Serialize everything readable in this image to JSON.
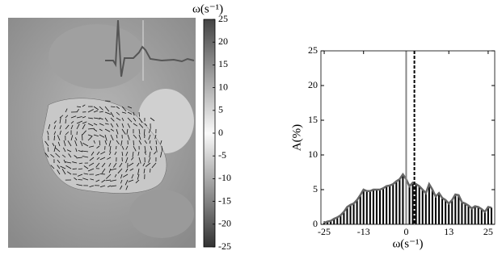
{
  "chart_data": [
    {
      "type": "colorbar",
      "title": "ω(s⁻¹)",
      "ylim": [
        -25,
        25
      ],
      "yticks": [
        25,
        20,
        15,
        10,
        5,
        0,
        -5,
        -10,
        -15,
        -20,
        -25
      ]
    },
    {
      "type": "bar",
      "xlabel": "ω(s⁻¹)",
      "ylabel": "A(%)",
      "x": [
        -25,
        -24,
        -23,
        -22,
        -21,
        -20,
        -19,
        -18,
        -17,
        -16,
        -15,
        -14,
        -13,
        -12,
        -11,
        -10,
        -9,
        -8,
        -7,
        -6,
        -5,
        -4,
        -3,
        -2,
        -1,
        0,
        1,
        2,
        3,
        4,
        5,
        6,
        7,
        8,
        9,
        10,
        11,
        12,
        13,
        14,
        15,
        16,
        17,
        18,
        19,
        20,
        21,
        22,
        23,
        24,
        25,
        26
      ],
      "series": [
        {
          "color": "#000000",
          "line_color": "#666666",
          "values": [
            0.2,
            0.4,
            0.5,
            0.8,
            1,
            1.3,
            1.8,
            2.5,
            2.8,
            3,
            3.5,
            4.2,
            5,
            4.8,
            4.8,
            5,
            5,
            5,
            5.2,
            5.5,
            5.6,
            5.8,
            6.2,
            6.5,
            7.2,
            6.5,
            5.5,
            6,
            5.8,
            5.5,
            5,
            4.5,
            5.8,
            5,
            4,
            4.5,
            3.8,
            3.5,
            3,
            3.5,
            4.3,
            4.2,
            3.2,
            3,
            2.7,
            2.3,
            2.6,
            2.5,
            2.2,
            1.8,
            2.5,
            2.4
          ]
        }
      ],
      "vlines": [
        {
          "value": 0,
          "color": "#888888",
          "style": "solid"
        },
        {
          "value": 2.5,
          "color": "#000000",
          "style": "dashed"
        }
      ],
      "xlim": [
        -26,
        27
      ],
      "ylim": [
        0,
        25
      ],
      "xticks": [
        -25,
        -13,
        0,
        13,
        25
      ],
      "yticks": [
        0,
        5,
        10,
        15,
        20,
        25
      ]
    }
  ]
}
